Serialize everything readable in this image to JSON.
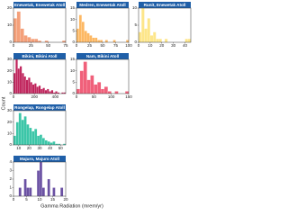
{
  "chart_data": [
    {
      "type": "histogram",
      "title": "Enewetak, Enewetak Atoll",
      "color": "#f4a07a",
      "bins": [
        0,
        5,
        10,
        15,
        20,
        25,
        30,
        35,
        40,
        45,
        50,
        55,
        60,
        65,
        70,
        75
      ],
      "values": [
        14,
        18,
        8,
        4,
        3,
        2,
        2,
        1,
        0,
        1,
        0,
        0,
        0,
        0,
        1
      ],
      "xlim": [
        0,
        75
      ],
      "xticks": [
        0,
        25,
        50,
        75
      ],
      "ylim": [
        0,
        20
      ],
      "yticks": [
        0,
        10,
        20
      ]
    },
    {
      "type": "histogram",
      "title": "Medren, Enewetak Atoll",
      "color": "#fdb863",
      "bins": [
        0,
        5,
        10,
        15,
        20,
        25,
        30,
        35,
        40,
        45,
        50,
        55,
        60,
        65,
        70,
        75,
        80,
        85,
        90,
        95,
        100
      ],
      "values": [
        6,
        12,
        9,
        5,
        4,
        3,
        2,
        2,
        1,
        1,
        0,
        1,
        0,
        0,
        1,
        0,
        0,
        0,
        0,
        1
      ],
      "xlim": [
        0,
        100
      ],
      "xticks": [
        0,
        25,
        50,
        75,
        100
      ],
      "ylim": [
        0,
        15
      ],
      "yticks": [
        0,
        5,
        10,
        15
      ]
    },
    {
      "type": "histogram",
      "title": "Runit, Enewetak Atoll",
      "color": "#fde68a",
      "bins": [
        0,
        2.5,
        5,
        7.5,
        10,
        12.5,
        15,
        17.5,
        20,
        22.5,
        25,
        27.5,
        30,
        32.5,
        35,
        37.5,
        40,
        42.5,
        45
      ],
      "values": [
        3,
        10,
        4,
        7,
        2,
        3,
        1,
        1,
        0,
        1,
        0,
        0,
        0,
        0,
        0,
        0,
        1,
        1
      ],
      "xlim": [
        0,
        45
      ],
      "xticks": [
        0,
        10,
        20,
        30,
        40
      ],
      "ylim": [
        0,
        10
      ],
      "yticks": [
        0,
        5,
        10
      ]
    },
    {
      "type": "histogram",
      "title": "Bikini, Bikini Atoll",
      "color": "#c0245c",
      "bins": [
        0,
        20,
        40,
        60,
        80,
        100,
        120,
        140,
        160,
        180,
        200,
        220,
        240,
        260,
        280,
        300,
        320,
        340,
        360,
        380,
        400,
        420,
        440,
        460,
        480,
        500
      ],
      "values": [
        18,
        30,
        22,
        24,
        18,
        15,
        12,
        14,
        10,
        8,
        9,
        6,
        7,
        4,
        5,
        3,
        4,
        2,
        3,
        1,
        2,
        1,
        0,
        1,
        1
      ],
      "xlim": [
        0,
        500
      ],
      "xticks": [
        0,
        200,
        400
      ],
      "ylim": [
        0,
        30
      ],
      "yticks": [
        0,
        10,
        20,
        30
      ]
    },
    {
      "type": "histogram",
      "title": "Nam, Bikini Atoll",
      "color": "#f0607a",
      "bins": [
        0,
        10,
        20,
        30,
        40,
        50,
        60,
        70,
        80,
        90,
        100,
        110,
        120,
        130,
        140,
        150
      ],
      "values": [
        2,
        10,
        14,
        6,
        8,
        4,
        5,
        2,
        3,
        1,
        0,
        1,
        0,
        0,
        1
      ],
      "xlim": [
        0,
        150
      ],
      "xticks": [
        0,
        50,
        100,
        150
      ],
      "ylim": [
        0,
        15
      ],
      "yticks": [
        0,
        5,
        10,
        15
      ]
    },
    {
      "type": "histogram",
      "title": "Rongelap, Rongelap Atoll",
      "color": "#3cc6a8",
      "bins": [
        5,
        7.5,
        10,
        12.5,
        15,
        17.5,
        20,
        22.5,
        25,
        27.5,
        30,
        32.5,
        35,
        37.5,
        40,
        42.5,
        45,
        47.5,
        50,
        52.5,
        55
      ],
      "values": [
        8,
        20,
        28,
        22,
        25,
        18,
        15,
        12,
        14,
        8,
        9,
        6,
        4,
        3,
        2,
        3,
        1,
        1,
        0,
        1
      ],
      "xlim": [
        5,
        55
      ],
      "xticks": [
        10,
        20,
        30,
        40,
        50
      ],
      "ylim": [
        0,
        30
      ],
      "yticks": [
        0,
        10,
        20,
        30
      ]
    },
    {
      "type": "histogram",
      "title": "Majuro, Majuro Atoll",
      "color": "#6a51a3",
      "bins": [
        0,
        1,
        2,
        3,
        4,
        5,
        6,
        7,
        8,
        9,
        10,
        11,
        12,
        13,
        14,
        15,
        16,
        17,
        18,
        19,
        20
      ],
      "values": [
        0,
        0,
        1,
        0,
        2,
        1,
        1,
        0,
        0,
        3,
        4,
        1,
        0,
        2,
        0,
        1,
        0,
        0,
        1,
        0
      ],
      "xlim": [
        0,
        20
      ],
      "xticks": [
        0,
        5,
        10,
        15,
        20
      ],
      "ylim": [
        0,
        4
      ],
      "yticks": [
        0,
        1,
        2,
        3,
        4
      ]
    }
  ],
  "xlabel": "Gamma Radiation (mrem/yr)",
  "ylabel": "Count"
}
